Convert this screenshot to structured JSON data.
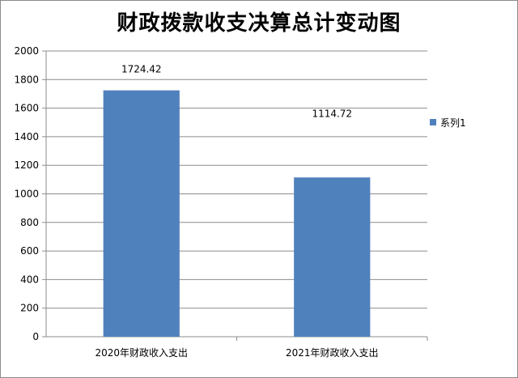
{
  "chart_data": {
    "type": "bar",
    "title": "财政拨款收支决算总计变动图",
    "categories": [
      "2020年财政收入支出",
      "2021年财政收入支出"
    ],
    "series": [
      {
        "name": "系列1",
        "values": [
          1724.42,
          1114.72
        ],
        "color": "#4f81bd"
      }
    ],
    "data_labels": [
      "1724.42",
      "1114.72"
    ],
    "ylim": [
      0,
      2000
    ],
    "yticks": [
      0,
      200,
      400,
      600,
      800,
      1000,
      1200,
      1400,
      1600,
      1800,
      2000
    ],
    "grid": true,
    "legend_position": "right"
  }
}
